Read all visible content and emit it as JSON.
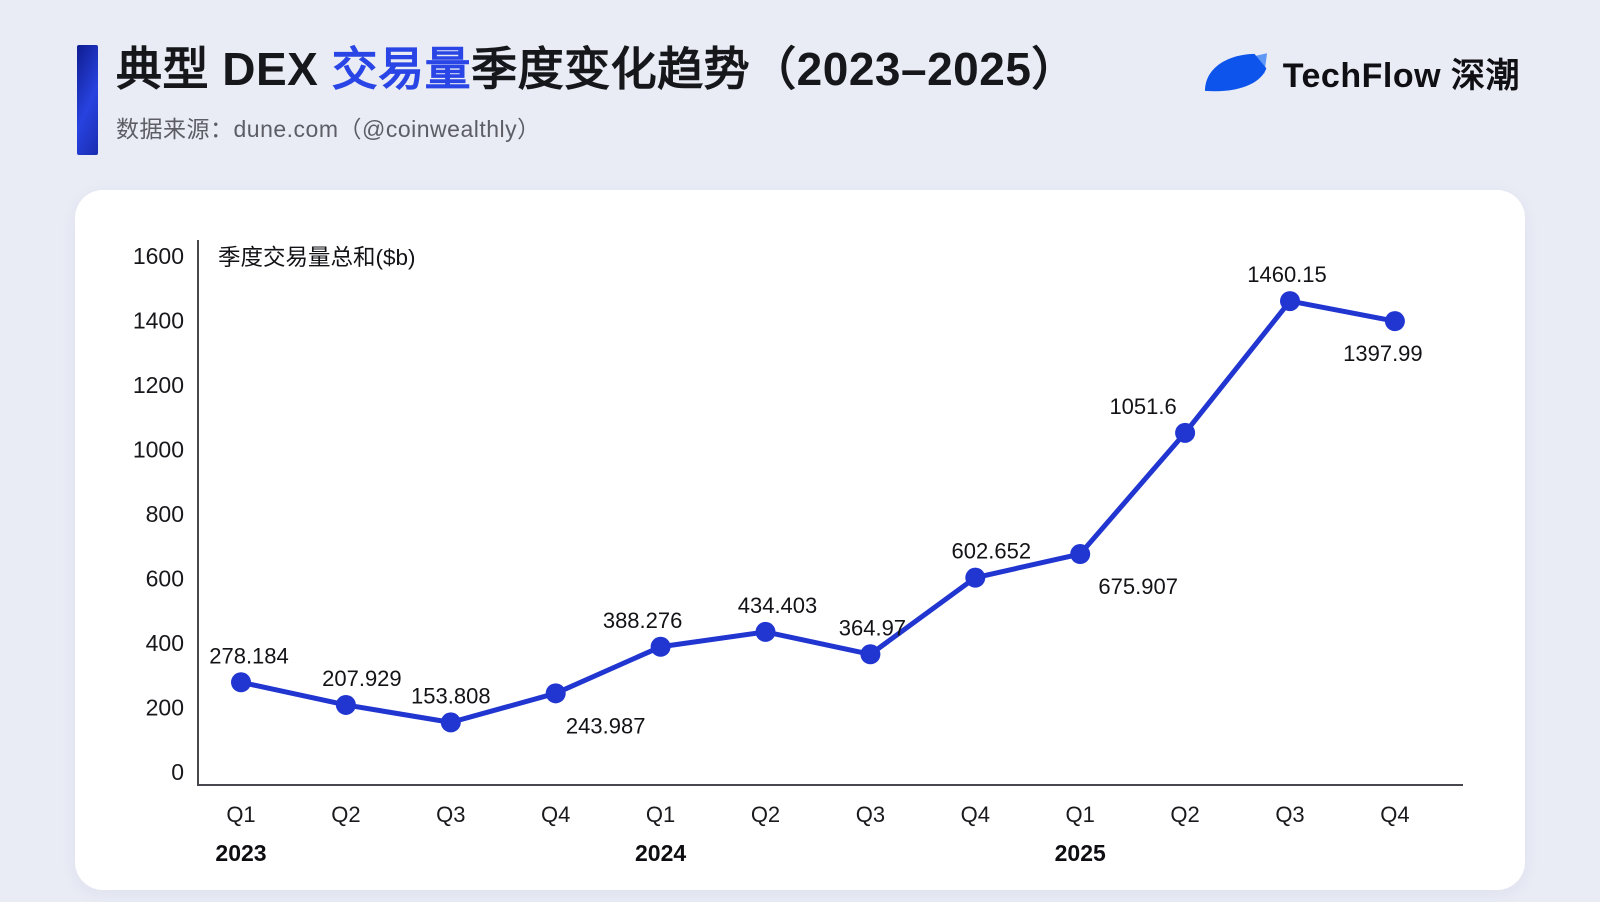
{
  "header": {
    "title": {
      "pre": "典型 DEX ",
      "highlight": "交易量",
      "post": "季度变化趋势（2023–2025）"
    },
    "source": "数据来源：dune.com（@coinwealthly）",
    "logo_text": "TechFlow 深潮"
  },
  "chart_data": {
    "type": "line",
    "title": "季度交易量总和($b)",
    "categories": [
      "Q1",
      "Q2",
      "Q3",
      "Q4",
      "Q1",
      "Q2",
      "Q3",
      "Q4",
      "Q1",
      "Q2",
      "Q3",
      "Q4"
    ],
    "year_groups": [
      {
        "label": "2023",
        "start_index": 0
      },
      {
        "label": "2024",
        "start_index": 4
      },
      {
        "label": "2025",
        "start_index": 8
      }
    ],
    "series": [
      {
        "name": "季度交易量总和($b)",
        "values": [
          278.184,
          207.929,
          153.808,
          243.987,
          388.276,
          434.403,
          364.97,
          602.652,
          675.907,
          1051.6,
          1460.15,
          1397.99
        ]
      }
    ],
    "point_labels": [
      "278.184",
      "207.929",
      "153.808",
      "243.987",
      "388.276",
      "434.403",
      "364.97",
      "602.652",
      "675.907",
      "1051.6",
      "1460.15",
      "1397.99"
    ],
    "label_positions": [
      "above",
      "above",
      "above",
      "below",
      "above",
      "above",
      "above",
      "above",
      "below",
      "above",
      "above",
      "below"
    ],
    "label_dx": [
      8,
      16,
      0,
      50,
      -18,
      12,
      2,
      16,
      58,
      -42,
      -3,
      -12
    ],
    "y_ticks": [
      0,
      200,
      400,
      600,
      800,
      1000,
      1200,
      1400,
      1600
    ],
    "ylim": [
      0,
      1600
    ],
    "grid": false,
    "legend": "none",
    "line_color": "#2135d1",
    "marker_color": "#2135d1",
    "axis_color": "#47474d"
  },
  "colors": {
    "background": "#e9ecf5",
    "card": "#ffffff",
    "accent_bar": "#2742df",
    "title_highlight": "#2945e5",
    "subtitle_text": "#5d5d66",
    "logo_leaf_dark": "#0d54ec",
    "logo_leaf_light": "#5f97f6"
  }
}
